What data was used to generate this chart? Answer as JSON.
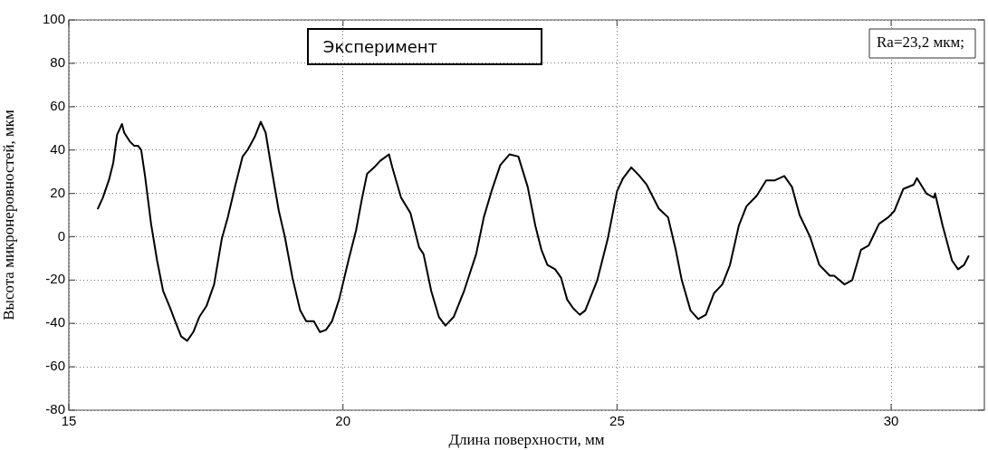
{
  "chart_data": {
    "type": "line",
    "xlabel": "Длина поверхности, мм",
    "ylabel": "Высота микронеровностей, мкм",
    "annotations": [
      "Ra=23,2 мкм;"
    ],
    "xlim": [
      15,
      31.7
    ],
    "xticks": [
      15,
      20,
      25,
      30
    ],
    "ylim": [
      -80,
      100
    ],
    "yticks": [
      -80,
      -60,
      -40,
      -20,
      0,
      20,
      40,
      60,
      80,
      100
    ],
    "grid": true,
    "legend": "top",
    "marker": "none",
    "line_style": "solid",
    "series": [
      {
        "name": "Эксперимент",
        "color": "#000000",
        "x": [
          15.53,
          15.62,
          15.73,
          15.81,
          15.88,
          15.97,
          16.01,
          16.11,
          16.19,
          16.26,
          16.32,
          16.39,
          16.5,
          16.61,
          16.72,
          16.85,
          16.94,
          17.05,
          17.16,
          17.27,
          17.38,
          17.51,
          17.65,
          17.79,
          17.9,
          18.04,
          18.17,
          18.26,
          18.39,
          18.5,
          18.59,
          18.7,
          18.83,
          18.94,
          19.08,
          19.22,
          19.33,
          19.47,
          19.58,
          19.69,
          19.8,
          19.93,
          20.1,
          20.24,
          20.35,
          20.44,
          20.57,
          20.68,
          20.84,
          20.9,
          21.06,
          21.23,
          21.39,
          21.47,
          21.61,
          21.75,
          21.87,
          22.02,
          22.21,
          22.43,
          22.57,
          22.71,
          22.87,
          23.04,
          23.2,
          23.37,
          23.51,
          23.62,
          23.73,
          23.87,
          23.98,
          24.09,
          24.2,
          24.32,
          24.42,
          24.64,
          24.83,
          25.0,
          25.11,
          25.26,
          25.41,
          25.54,
          25.76,
          25.93,
          26.07,
          26.18,
          26.34,
          26.48,
          26.62,
          26.77,
          26.92,
          27.06,
          27.22,
          27.36,
          27.55,
          27.72,
          27.88,
          28.05,
          28.19,
          28.33,
          28.52,
          28.69,
          28.88,
          28.96,
          29.15,
          29.29,
          29.45,
          29.59,
          29.78,
          29.95,
          30.06,
          30.22,
          30.41,
          30.47,
          30.64,
          30.78,
          30.8,
          30.94,
          31.11,
          31.22,
          31.33,
          31.41
        ],
        "values": [
          13,
          18,
          26,
          34,
          47,
          52,
          48,
          44,
          42,
          42,
          40,
          28,
          6,
          -11,
          -25,
          -33,
          -39,
          -46,
          -48,
          -44,
          -37,
          -32,
          -22,
          -1,
          9,
          24,
          37,
          40,
          46,
          53,
          48,
          31,
          12,
          0,
          -19,
          -34,
          -39,
          -39,
          -44,
          -43,
          -39,
          -29,
          -11,
          3,
          18,
          29,
          32,
          35,
          38,
          32,
          18,
          11,
          -5,
          -8,
          -25,
          -37,
          -41,
          -37,
          -25,
          -8,
          9,
          21,
          33,
          38,
          37,
          23,
          5,
          -6,
          -13,
          -15,
          -19,
          -29,
          -33,
          -36,
          -34,
          -20,
          -1,
          21,
          27,
          32,
          28,
          24,
          13,
          9,
          -6,
          -20,
          -34,
          -38,
          -36,
          -26,
          -22,
          -13,
          5,
          14,
          19,
          26,
          26,
          28,
          23,
          10,
          0,
          -13,
          -18,
          -18,
          -22,
          -20,
          -6,
          -4,
          6,
          9,
          12,
          22,
          24,
          27,
          20,
          18,
          20,
          5,
          -11,
          -15,
          -13,
          -9
        ]
      }
    ]
  }
}
